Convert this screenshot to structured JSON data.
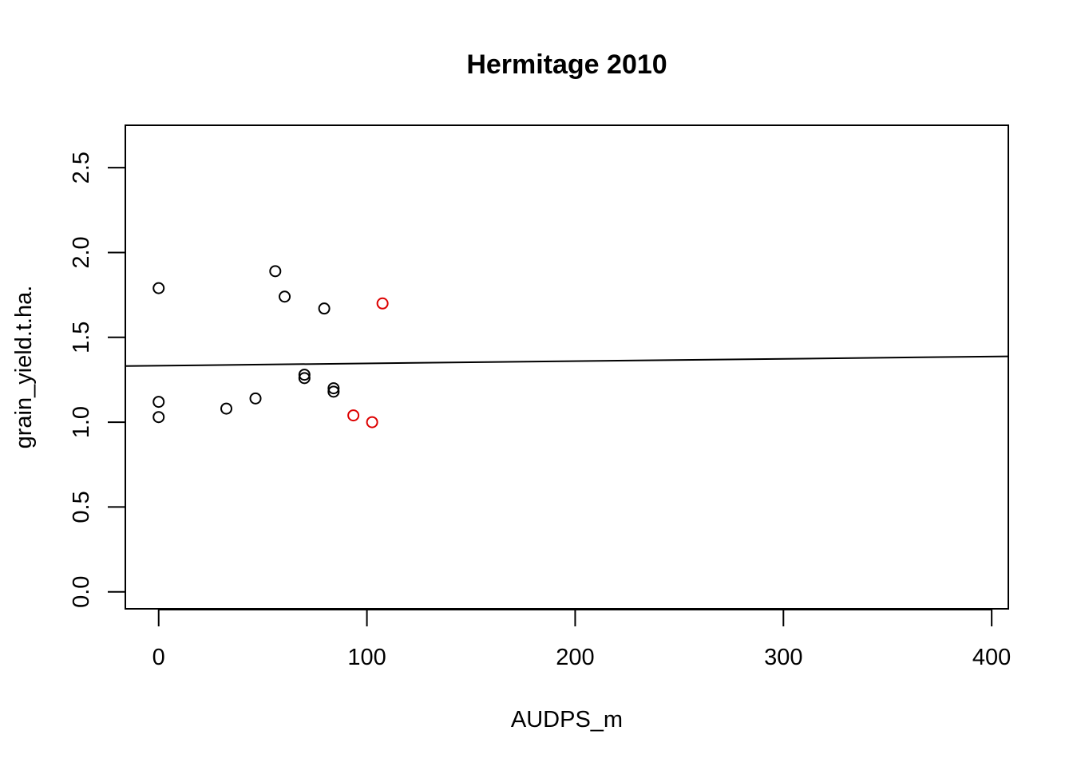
{
  "chart_data": {
    "type": "scatter",
    "title": "Hermitage 2010",
    "xlabel": "AUDPS_m",
    "ylabel": "grain_yield.t.ha.",
    "xlim": [
      -16,
      408
    ],
    "ylim": [
      -0.1,
      2.75
    ],
    "x_ticks": [
      0,
      100,
      200,
      300,
      400
    ],
    "x_tick_labels": [
      "0",
      "100",
      "200",
      "300",
      "400"
    ],
    "y_ticks": [
      0.0,
      0.5,
      1.0,
      1.5,
      2.0,
      2.5
    ],
    "y_tick_labels": [
      "0.0",
      "0.5",
      "1.0",
      "1.5",
      "2.0",
      "2.5"
    ],
    "grid": false,
    "legend": null,
    "colors": {
      "default": "#000000",
      "highlight": "#dd0000",
      "line": "#000000"
    },
    "series": [
      {
        "color": "#000000",
        "points": [
          {
            "x": 0,
            "y": 1.79
          },
          {
            "x": 0,
            "y": 1.12
          },
          {
            "x": 0,
            "y": 1.03
          },
          {
            "x": 32.5,
            "y": 1.08
          },
          {
            "x": 46.5,
            "y": 1.14
          },
          {
            "x": 56,
            "y": 1.89
          },
          {
            "x": 60.5,
            "y": 1.74
          },
          {
            "x": 70,
            "y": 1.28
          },
          {
            "x": 70,
            "y": 1.26
          },
          {
            "x": 79.5,
            "y": 1.67
          },
          {
            "x": 84,
            "y": 1.2
          },
          {
            "x": 84,
            "y": 1.18
          }
        ]
      },
      {
        "color": "#dd0000",
        "points": [
          {
            "x": 93.5,
            "y": 1.04
          },
          {
            "x": 102.5,
            "y": 1.0
          },
          {
            "x": 107.5,
            "y": 1.7
          }
        ]
      }
    ],
    "regression_line": {
      "intercept": 1.3329,
      "slope": 0.000135
    }
  }
}
